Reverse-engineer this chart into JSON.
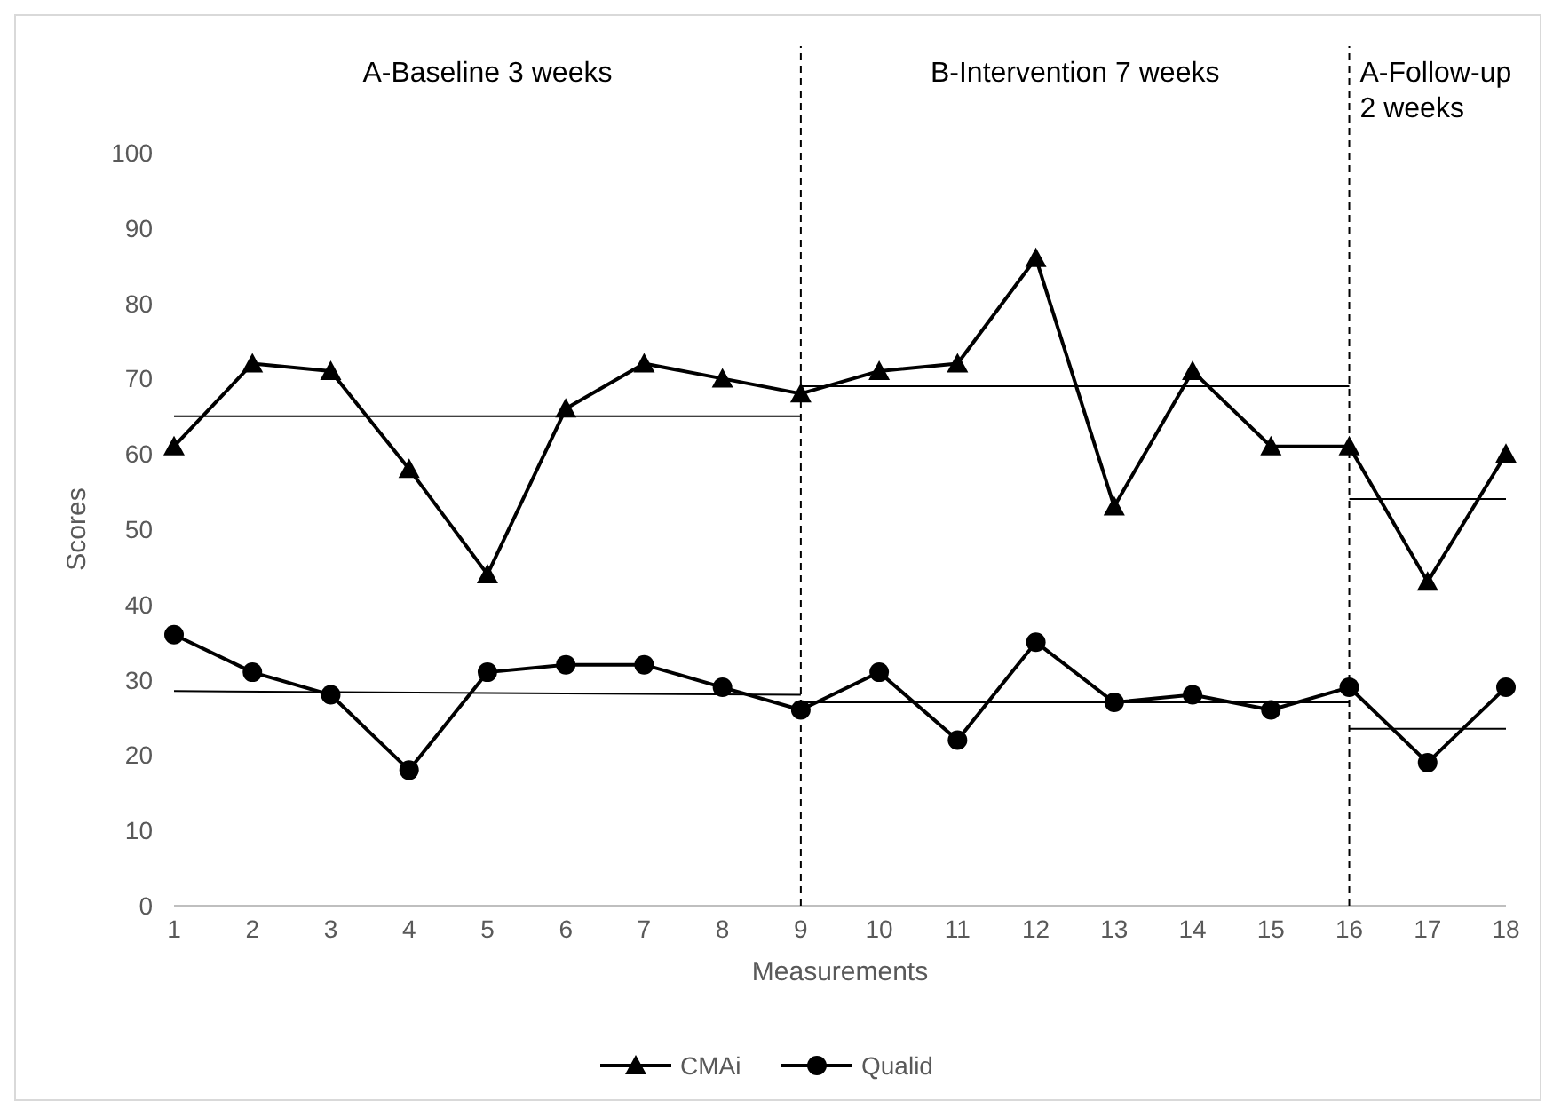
{
  "chart_data": {
    "type": "line",
    "xlabel": "Measurements",
    "ylabel": "Scores",
    "xlim": [
      1,
      18
    ],
    "xticks": [
      1,
      2,
      3,
      4,
      5,
      6,
      7,
      8,
      9,
      10,
      11,
      12,
      13,
      14,
      15,
      16,
      17,
      18
    ],
    "ylim": [
      0,
      100
    ],
    "yticks": [
      0,
      10,
      20,
      30,
      40,
      50,
      60,
      70,
      80,
      90,
      100
    ],
    "grid": false,
    "legend": "bottom",
    "series": [
      {
        "name": "CMAi",
        "color": "#000000",
        "marker": "triangle",
        "x": [
          1,
          2,
          3,
          4,
          5,
          6,
          7,
          8,
          9,
          10,
          11,
          12,
          13,
          14,
          15,
          16,
          17,
          18
        ],
        "values": [
          61,
          72,
          71,
          58,
          44,
          66,
          72,
          70,
          68,
          71,
          72,
          86,
          53,
          71,
          61,
          61,
          43,
          60
        ]
      },
      {
        "name": "Qualid",
        "color": "#000000",
        "marker": "circle",
        "x": [
          1,
          2,
          3,
          4,
          5,
          6,
          7,
          8,
          9,
          10,
          11,
          12,
          13,
          14,
          15,
          16,
          17,
          18
        ],
        "values": [
          36,
          31,
          28,
          18,
          31,
          32,
          32,
          29,
          26,
          31,
          22,
          35,
          27,
          28,
          26,
          29,
          19,
          29
        ]
      },
      {
        "color": "#000000",
        "marker": "none",
        "x": [
          1,
          9
        ],
        "values": [
          65,
          65
        ]
      },
      {
        "color": "#000000",
        "marker": "none",
        "x": [
          9,
          16
        ],
        "values": [
          69,
          69
        ]
      },
      {
        "color": "#000000",
        "marker": "none",
        "x": [
          16,
          18
        ],
        "values": [
          54,
          54
        ]
      },
      {
        "color": "#000000",
        "marker": "none",
        "x": [
          1,
          9
        ],
        "values": [
          28.5,
          28
        ]
      },
      {
        "color": "#000000",
        "marker": "none",
        "x": [
          9,
          16
        ],
        "values": [
          27,
          27
        ]
      },
      {
        "color": "#000000",
        "marker": "none",
        "x": [
          16,
          18
        ],
        "values": [
          23.5,
          23.5
        ]
      }
    ],
    "ref_lines": [
      {
        "axis": "x",
        "value": 9,
        "line_style": "dashed",
        "color": "#000000"
      },
      {
        "axis": "x",
        "value": 16,
        "line_style": "dashed",
        "color": "#000000"
      }
    ],
    "annotations": [
      "A-Baseline 3 weeks",
      "B-Intervention 7 weeks",
      "A-Follow-up 2 weeks"
    ]
  }
}
